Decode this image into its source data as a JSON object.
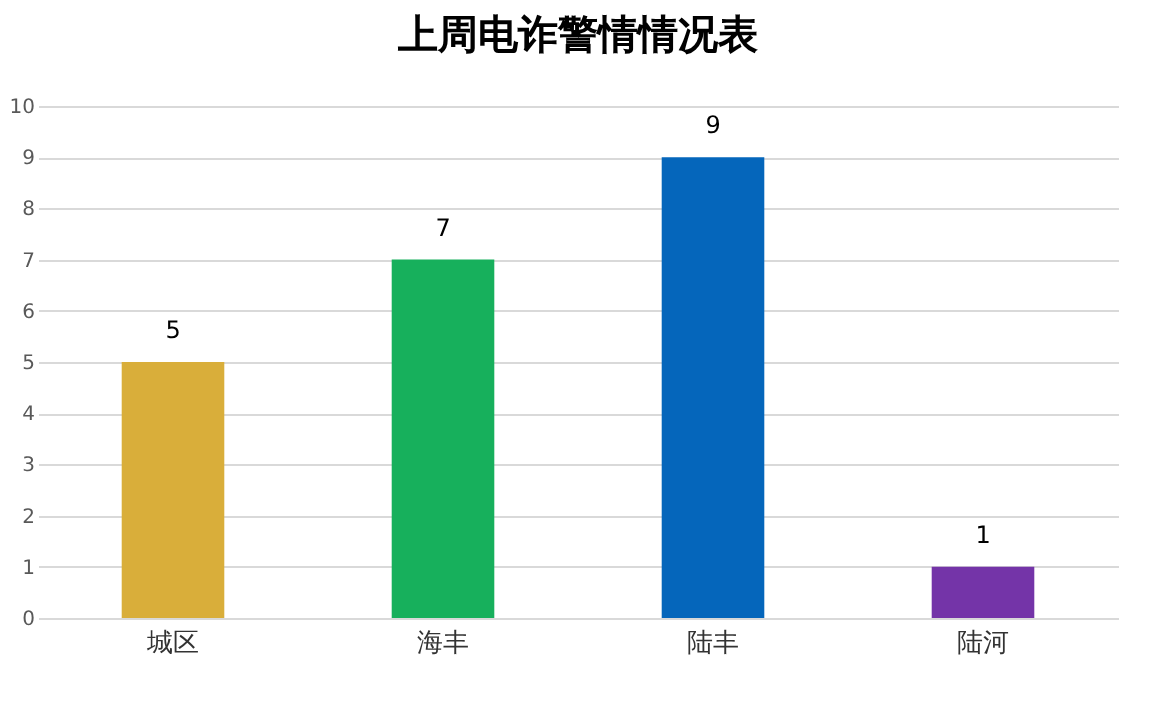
{
  "chart_data": {
    "type": "bar",
    "title": "上周电诈警情情况表",
    "categories": [
      "城区",
      "海丰",
      "陆丰",
      "陆河"
    ],
    "values": [
      5,
      7,
      9,
      1
    ],
    "colors": [
      "#d9ae3a",
      "#17b05c",
      "#0566bb",
      "#7434a8"
    ],
    "ylim": [
      0,
      10
    ],
    "yticks": [
      0,
      1,
      2,
      3,
      4,
      5,
      6,
      7,
      8,
      9,
      10
    ],
    "grid": "y",
    "data_labels": true
  }
}
